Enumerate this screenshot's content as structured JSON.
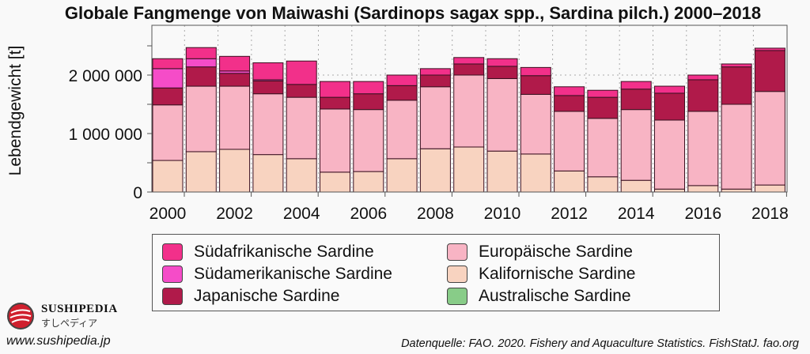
{
  "chart_data": {
    "type": "bar",
    "stacked": true,
    "title": "Globale Fangmenge von Maiwashi (Sardinops sagax spp., Sardina pilch.) 2000–2018",
    "xlabel": "",
    "ylabel": "Lebendgewicht [t]",
    "ylim": [
      0,
      2700000
    ],
    "yticks": [
      0,
      500000,
      1000000,
      1500000,
      2000000,
      2500000
    ],
    "ytick_labels": [
      "0",
      "",
      "1 000 000",
      "",
      "2 000 000",
      ""
    ],
    "grid": "dotted",
    "legend_position": "bottom",
    "categories": [
      "2000",
      "2001",
      "2002",
      "2003",
      "2004",
      "2005",
      "2006",
      "2007",
      "2008",
      "2009",
      "2010",
      "2011",
      "2012",
      "2013",
      "2014",
      "2015",
      "2016",
      "2017",
      "2018"
    ],
    "xtick_labels": [
      "2000",
      "2002",
      "2004",
      "2006",
      "2008",
      "2010",
      "2012",
      "2014",
      "2016",
      "2018"
    ],
    "series": [
      {
        "name": "Kalifornische Sardine",
        "color": "#f8d3c0",
        "values": [
          540000,
          690000,
          730000,
          640000,
          570000,
          340000,
          350000,
          570000,
          740000,
          770000,
          700000,
          650000,
          360000,
          260000,
          200000,
          50000,
          110000,
          50000,
          120000
        ]
      },
      {
        "name": "Europäische Sardine",
        "color": "#f8b4c4",
        "values": [
          950000,
          1120000,
          1080000,
          1040000,
          1050000,
          1080000,
          1060000,
          1000000,
          1060000,
          1230000,
          1240000,
          1020000,
          1020000,
          1000000,
          1210000,
          1180000,
          1270000,
          1450000,
          1600000
        ]
      },
      {
        "name": "Australische Sardine",
        "color": "#88cc88",
        "values": [
          0,
          0,
          0,
          0,
          0,
          0,
          0,
          0,
          0,
          0,
          0,
          0,
          0,
          0,
          0,
          0,
          0,
          0,
          0
        ]
      },
      {
        "name": "Japanische Sardine",
        "color": "#b01a4a",
        "values": [
          290000,
          330000,
          220000,
          220000,
          220000,
          200000,
          270000,
          250000,
          200000,
          190000,
          210000,
          320000,
          270000,
          360000,
          350000,
          460000,
          540000,
          640000,
          700000
        ]
      },
      {
        "name": "Südamerikanische Sardine",
        "color": "#f54cc8",
        "values": [
          330000,
          140000,
          40000,
          20000,
          0,
          0,
          0,
          0,
          0,
          0,
          0,
          0,
          0,
          0,
          0,
          0,
          0,
          0,
          0
        ]
      },
      {
        "name": "Südafrikanische Sardine",
        "color": "#f2308a",
        "values": [
          170000,
          190000,
          250000,
          290000,
          400000,
          270000,
          210000,
          180000,
          110000,
          110000,
          130000,
          140000,
          150000,
          120000,
          130000,
          120000,
          80000,
          50000,
          40000
        ]
      }
    ]
  },
  "legend_order": [
    {
      "name": "Südafrikanische Sardine",
      "color": "#f2308a"
    },
    {
      "name": "Südamerikanische Sardine",
      "color": "#f54cc8"
    },
    {
      "name": "Japanische Sardine",
      "color": "#b01a4a"
    },
    {
      "name": "Europäische Sardine",
      "color": "#f8b4c4"
    },
    {
      "name": "Kalifornische Sardine",
      "color": "#f8d3c0"
    },
    {
      "name": "Australische Sardine",
      "color": "#88cc88"
    }
  ],
  "branding": {
    "name": "SUSHIPEDIA",
    "name_jp": "すしペディア",
    "url": "www.sushipedia.jp",
    "logo_color": "#d0202e"
  },
  "source": "Datenquelle: FAO. 2020. Fishery and Aquaculture Statistics. FishStatJ. fao.org"
}
